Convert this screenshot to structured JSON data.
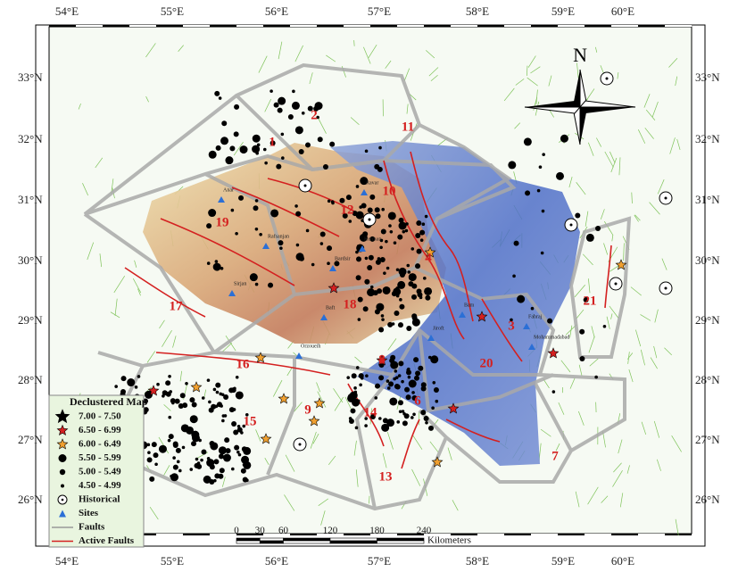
{
  "lon_labels_top": [
    "54°E",
    "55°E",
    "56°E",
    "57°E",
    "58°E",
    "59°E",
    "60°E"
  ],
  "lon_labels_bottom": [
    "54°E",
    "55°E",
    "56°E",
    "57°E",
    "58°E",
    "59°E",
    "60°E"
  ],
  "lat_labels_left": [
    "33°N",
    "32°N",
    "31°N",
    "30°N",
    "29°N",
    "28°N",
    "27°N",
    "26°N"
  ],
  "lat_labels_right": [
    "33°N",
    "32°N",
    "31°N",
    "30°N",
    "29°N",
    "28°N",
    "27°N",
    "26°N"
  ],
  "zones": [
    "1",
    "2",
    "3",
    "4",
    "6",
    "7",
    "8",
    "9",
    "10",
    "11",
    "12",
    "13",
    "14",
    "15",
    "16",
    "17",
    "18",
    "19",
    "20",
    "21"
  ],
  "places": [
    "Anar",
    "Rafsanjan",
    "Sirjan",
    "Kerman",
    "Bardsir",
    "Ravar",
    "Fahraj",
    "Jiroft",
    "Orzoueih",
    "Mohammadabad",
    "Baft",
    "Bam"
  ],
  "legend": {
    "title": "Declustered Map",
    "items": [
      "7.00 - 7.50",
      "6.50 - 6.99",
      "6.00 - 6.49",
      "5.50 - 5.99",
      "5.00 - 5.49",
      "4.50 - 4.99",
      "Historical",
      "Sites",
      "Faults",
      "Active Faults"
    ]
  },
  "scale": {
    "ticks": [
      "0",
      "30",
      "60",
      "120",
      "180",
      "240"
    ],
    "unit": "Kilometers"
  },
  "north": "N"
}
